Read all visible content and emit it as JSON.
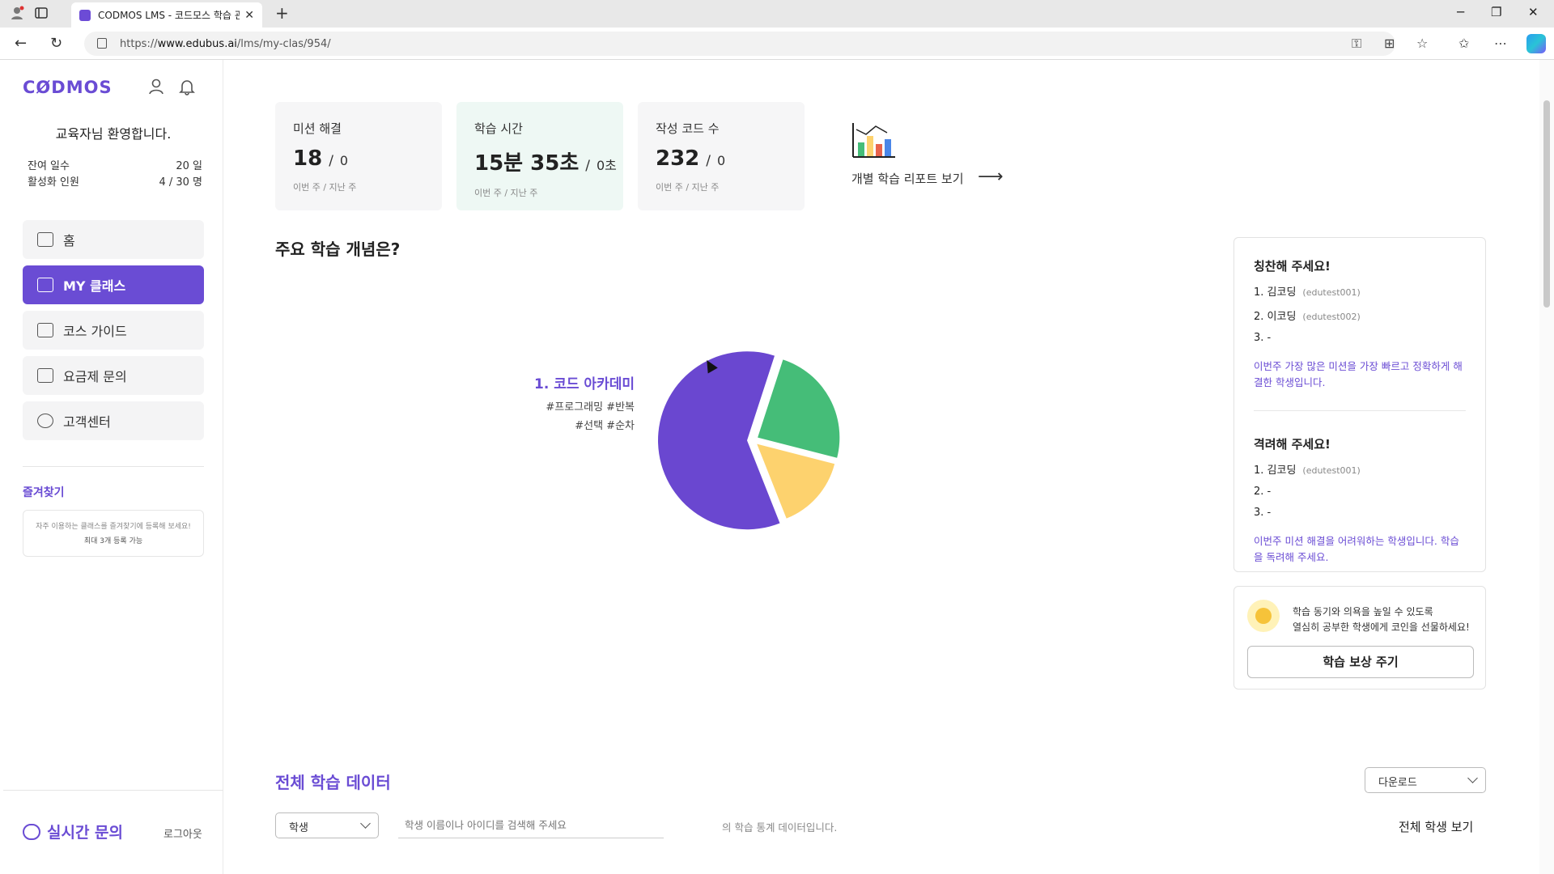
{
  "browser": {
    "tab_title": "CODMOS LMS - 코드모스 학습 관",
    "url_prefix": "https://",
    "url_domain": "www.edubus.ai",
    "url_path": "/lms/my-clas/954/"
  },
  "sidebar": {
    "logo": "CØDMOS",
    "welcome": "교육자님 환영합니다.",
    "stats": [
      {
        "label": "잔여 일수",
        "value": "20 일"
      },
      {
        "label": "활성화 인원",
        "value": "4 / 30 명"
      }
    ],
    "menu": [
      {
        "label": "홈",
        "icon": "home-icon"
      },
      {
        "label": "MY 클래스",
        "icon": "class-icon"
      },
      {
        "label": "코스 가이드",
        "icon": "calendar-icon"
      },
      {
        "label": "요금제 문의",
        "icon": "card-icon"
      },
      {
        "label": "고객센터",
        "icon": "headset-icon"
      }
    ],
    "favorites_title": "즐겨찾기",
    "favorites_hint": "자주 이용하는 클래스를 즐겨찾기에 등록해 보세요!",
    "favorites_limit": "최대 3개 등록 가능",
    "chat_label": "실시간 문의",
    "logout": "로그아웃"
  },
  "cards": [
    {
      "label": "미션 해결",
      "value": "18",
      "prev": "0",
      "sub": "이번 주 / 지난 주"
    },
    {
      "label": "학습 시간",
      "value": "15분 35초",
      "prev": "0초",
      "sub": "이번 주 / 지난 주"
    },
    {
      "label": "작성 코드 수",
      "value": "232",
      "prev": "0",
      "sub": "이번 주 / 지난 주"
    }
  ],
  "report_link": "개별 학습 리포트 보기",
  "concepts": {
    "title": "주요 학습 개념은?",
    "top_name": "1. 코드 아카데미",
    "top_tags_line1": "#프로그래밍 #반복",
    "top_tags_line2": "#선택 #순차",
    "colors": {
      "purple": "#6a47d0",
      "green": "#45bd78",
      "yellow": "#fdd26e"
    }
  },
  "chart_data": {
    "type": "pie",
    "slices": [
      {
        "color": "#6a47d0",
        "value": 61
      },
      {
        "color": "#45bd78",
        "value": 24
      },
      {
        "color": "#fdd26e",
        "value": 15
      }
    ]
  },
  "praise": {
    "title": "칭찬해 주세요!",
    "ranks": [
      {
        "name": "1. 김코딩",
        "id": "(edutest001)"
      },
      {
        "name": "2. 이코딩",
        "id": "(edutest002)"
      },
      {
        "name": "3. -",
        "id": ""
      }
    ],
    "desc": "이번주 가장 많은 미션을 가장 빠르고 정확하게 해결한 학생입니다."
  },
  "encourage": {
    "title": "격려해 주세요!",
    "ranks": [
      {
        "name": "1. 김코딩",
        "id": "(edutest001)"
      },
      {
        "name": "2. -",
        "id": ""
      },
      {
        "name": "3. -",
        "id": ""
      }
    ],
    "desc": "이번주 미션 해결을 어려워하는 학생입니다. 학습을 독려해 주세요."
  },
  "reward": {
    "line1": "학습 동기와 의욕을 높일 수 있도록",
    "line2": "열심히 공부한 학생에게 코인을 선물하세요!",
    "button": "학습 보상 주기"
  },
  "all_data": {
    "title": "전체 학습 데이터",
    "download": "다운로드",
    "select": "학생",
    "search_placeholder": "학생 이름이나 아이디를 검색해 주세요",
    "search_suffix": "의 학습 통계 데이터입니다.",
    "view_all": "전체 학생 보기"
  }
}
